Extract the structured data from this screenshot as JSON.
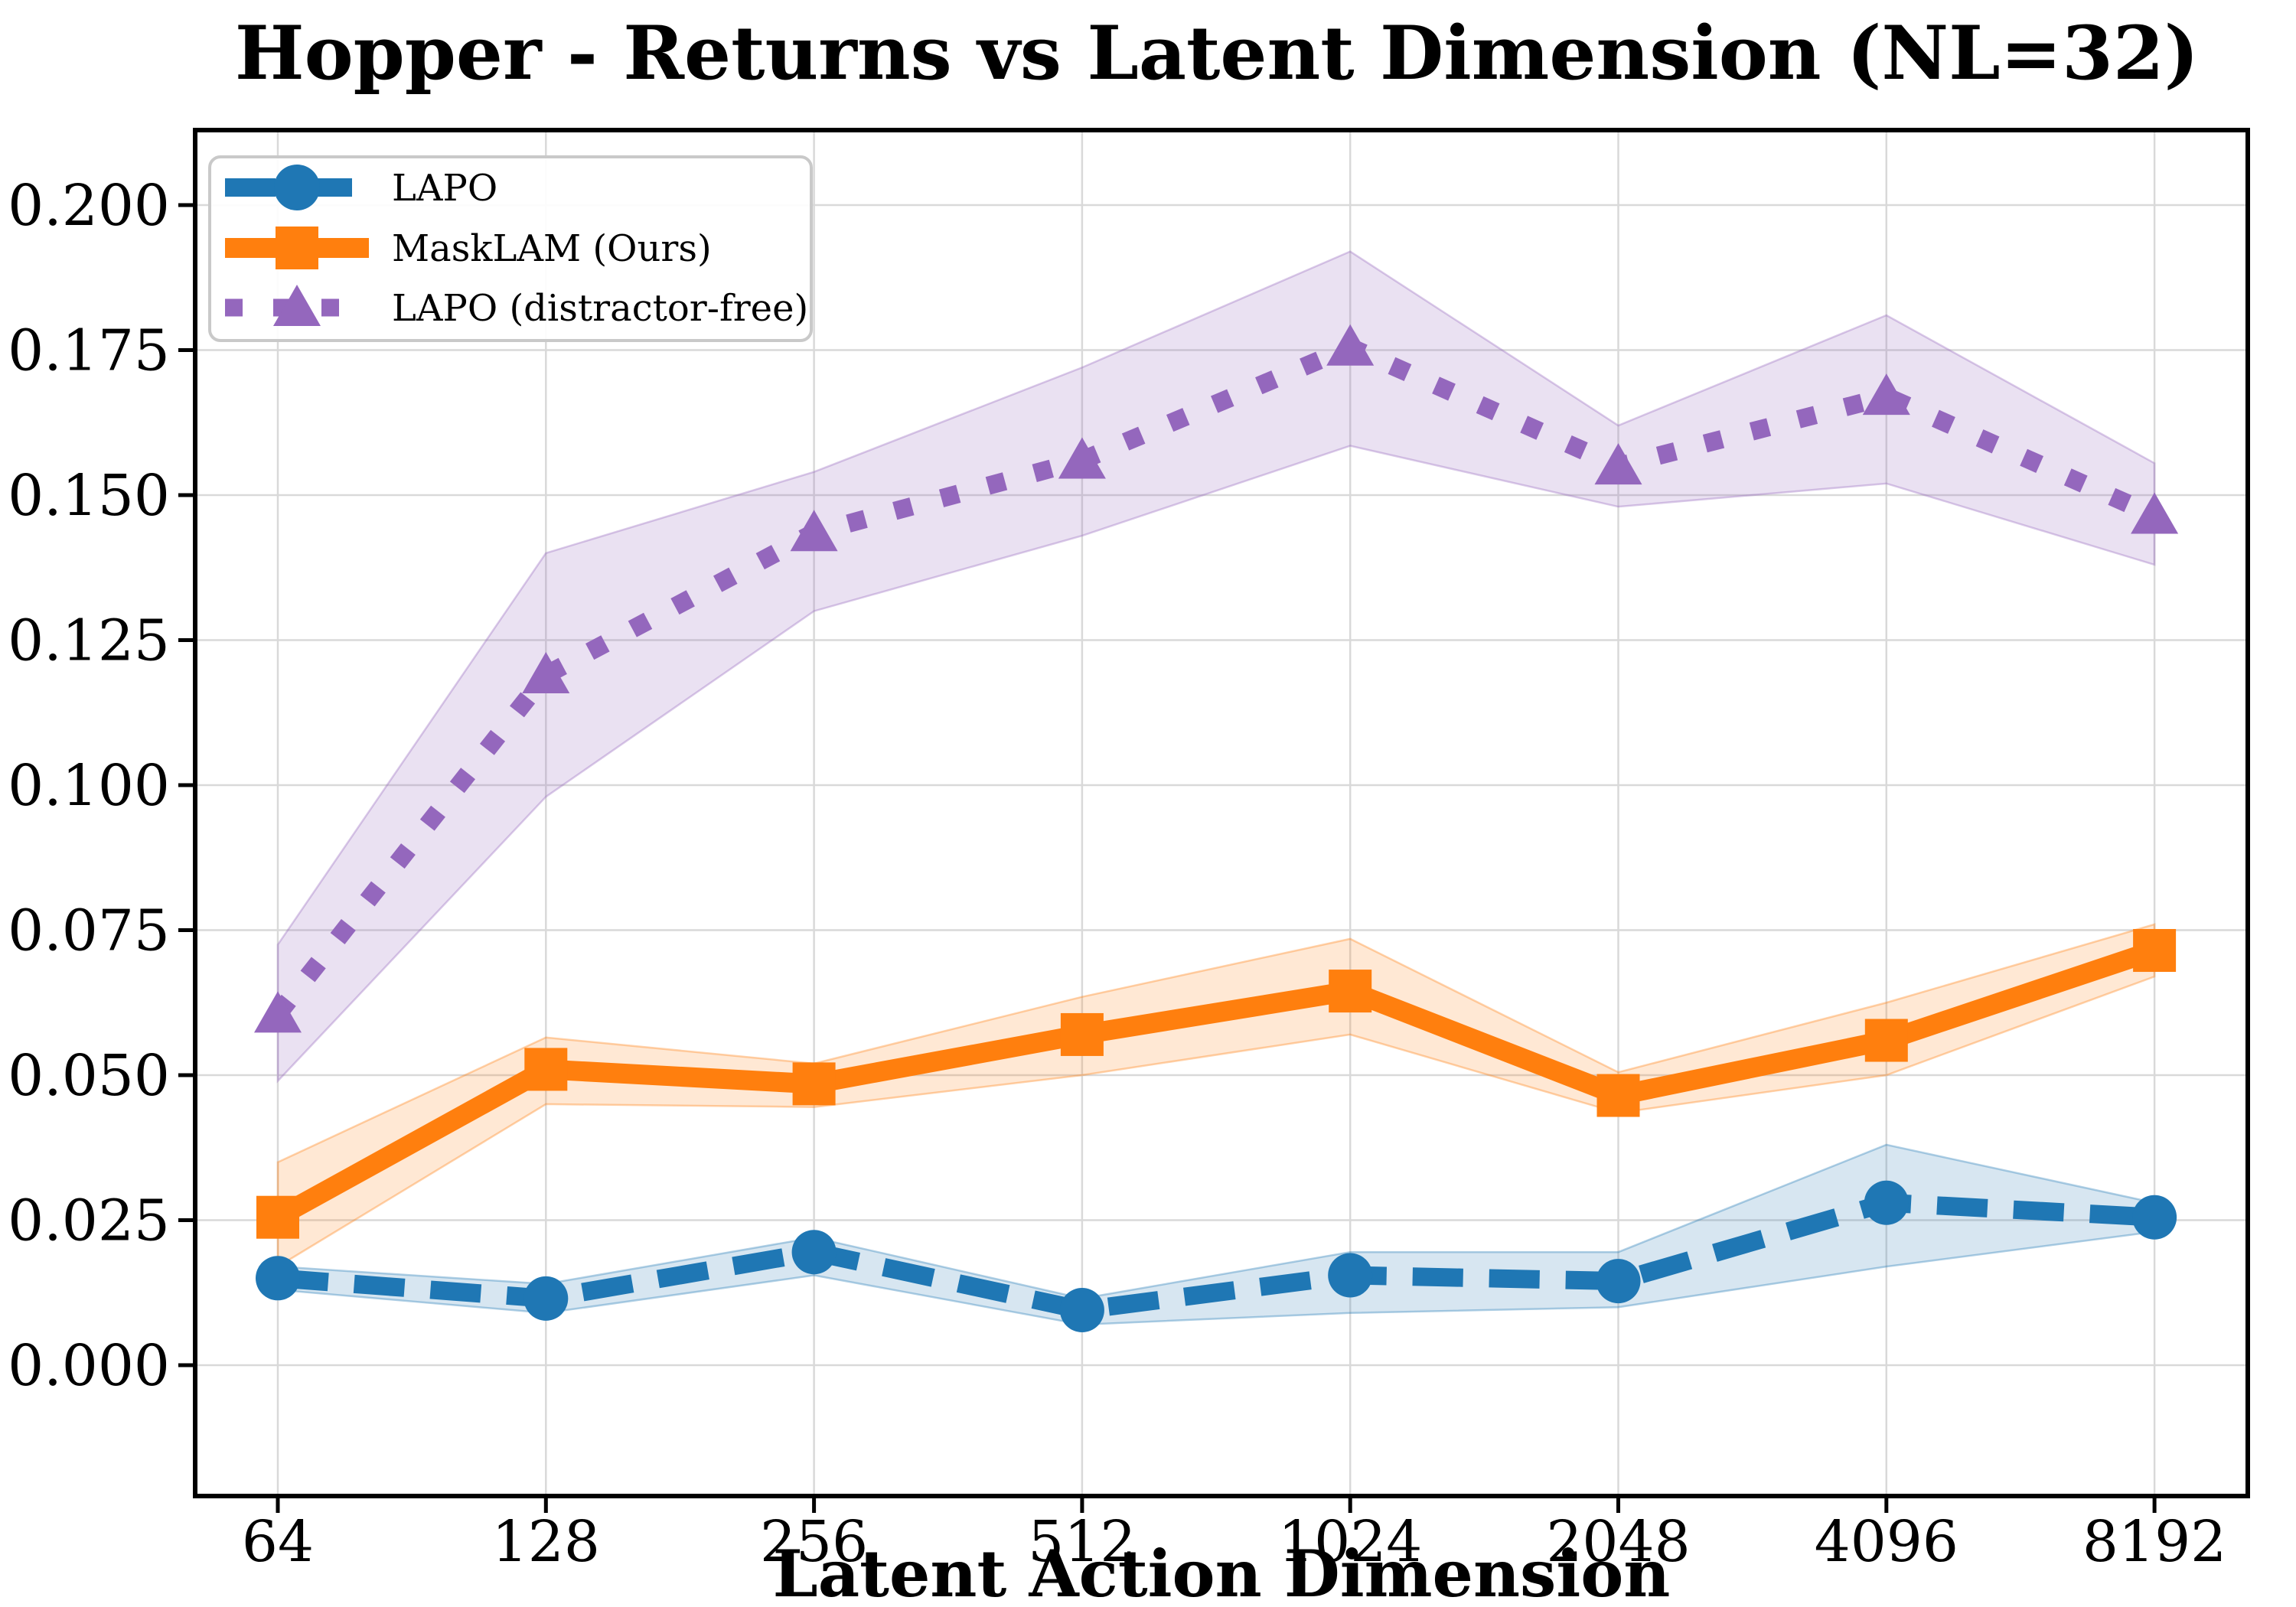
{
  "title": "Hopper - Returns vs Latent Dimension (NL=32)",
  "axes": {
    "xlabel": "Latent Action Dimension",
    "x_tick_labels": [
      "64",
      "128",
      "256",
      "512",
      "1024",
      "2048",
      "4096",
      "8192"
    ],
    "y_tick_labels": [
      "0.000",
      "0.025",
      "0.050",
      "0.075",
      "0.100",
      "0.125",
      "0.150",
      "0.175",
      "0.200"
    ],
    "y_tick_values": [
      0.0,
      0.025,
      0.05,
      0.075,
      0.1,
      0.125,
      0.15,
      0.175,
      0.2
    ],
    "grid_color": "#d9d9d9",
    "spine_color": "#000000"
  },
  "legend": {
    "position": "upper left",
    "border_color": "#c9c9c9",
    "background": "#ffffff"
  },
  "chart_data": {
    "type": "line",
    "title": "Hopper - Returns vs Latent Dimension (NL=32)",
    "xlabel": "Latent Action Dimension",
    "ylabel": "",
    "x_scale": "log2",
    "categories": [
      64,
      128,
      256,
      512,
      1024,
      2048,
      4096,
      8192
    ],
    "ylim": [
      -0.0225,
      0.213
    ],
    "grid": true,
    "legend_position": "upper left",
    "series": [
      {
        "name": "LAPO",
        "color": "#1f77b4",
        "linestyle": "dashed",
        "marker": "circle",
        "values": [
          0.015,
          0.0115,
          0.0195,
          0.0095,
          0.0155,
          0.0145,
          0.028,
          0.0255
        ],
        "band_lower": [
          0.013,
          0.009,
          0.0155,
          0.007,
          0.009,
          0.01,
          0.017,
          0.023
        ],
        "band_upper": [
          0.017,
          0.014,
          0.022,
          0.0115,
          0.0195,
          0.0195,
          0.038,
          0.028
        ],
        "band_opacity": 0.18
      },
      {
        "name": "MaskLAM (Ours)",
        "color": "#ff7f0e",
        "linestyle": "solid",
        "marker": "square",
        "values": [
          0.0255,
          0.051,
          0.0485,
          0.057,
          0.0645,
          0.0465,
          0.056,
          0.0715
        ],
        "band_lower": [
          0.017,
          0.045,
          0.0445,
          0.05,
          0.057,
          0.0435,
          0.05,
          0.067
        ],
        "band_upper": [
          0.035,
          0.0565,
          0.052,
          0.0635,
          0.0735,
          0.0505,
          0.0625,
          0.076
        ],
        "band_opacity": 0.18
      },
      {
        "name": "LAPO (distractor-free)",
        "color": "#9467bd",
        "linestyle": "dotted",
        "marker": "triangle",
        "values": [
          0.0605,
          0.119,
          0.1435,
          0.156,
          0.1755,
          0.155,
          0.167,
          0.1465
        ],
        "band_lower": [
          0.049,
          0.098,
          0.13,
          0.143,
          0.1585,
          0.148,
          0.152,
          0.138
        ],
        "band_upper": [
          0.0725,
          0.14,
          0.154,
          0.172,
          0.192,
          0.162,
          0.181,
          0.1555
        ],
        "band_opacity": 0.2
      }
    ]
  }
}
